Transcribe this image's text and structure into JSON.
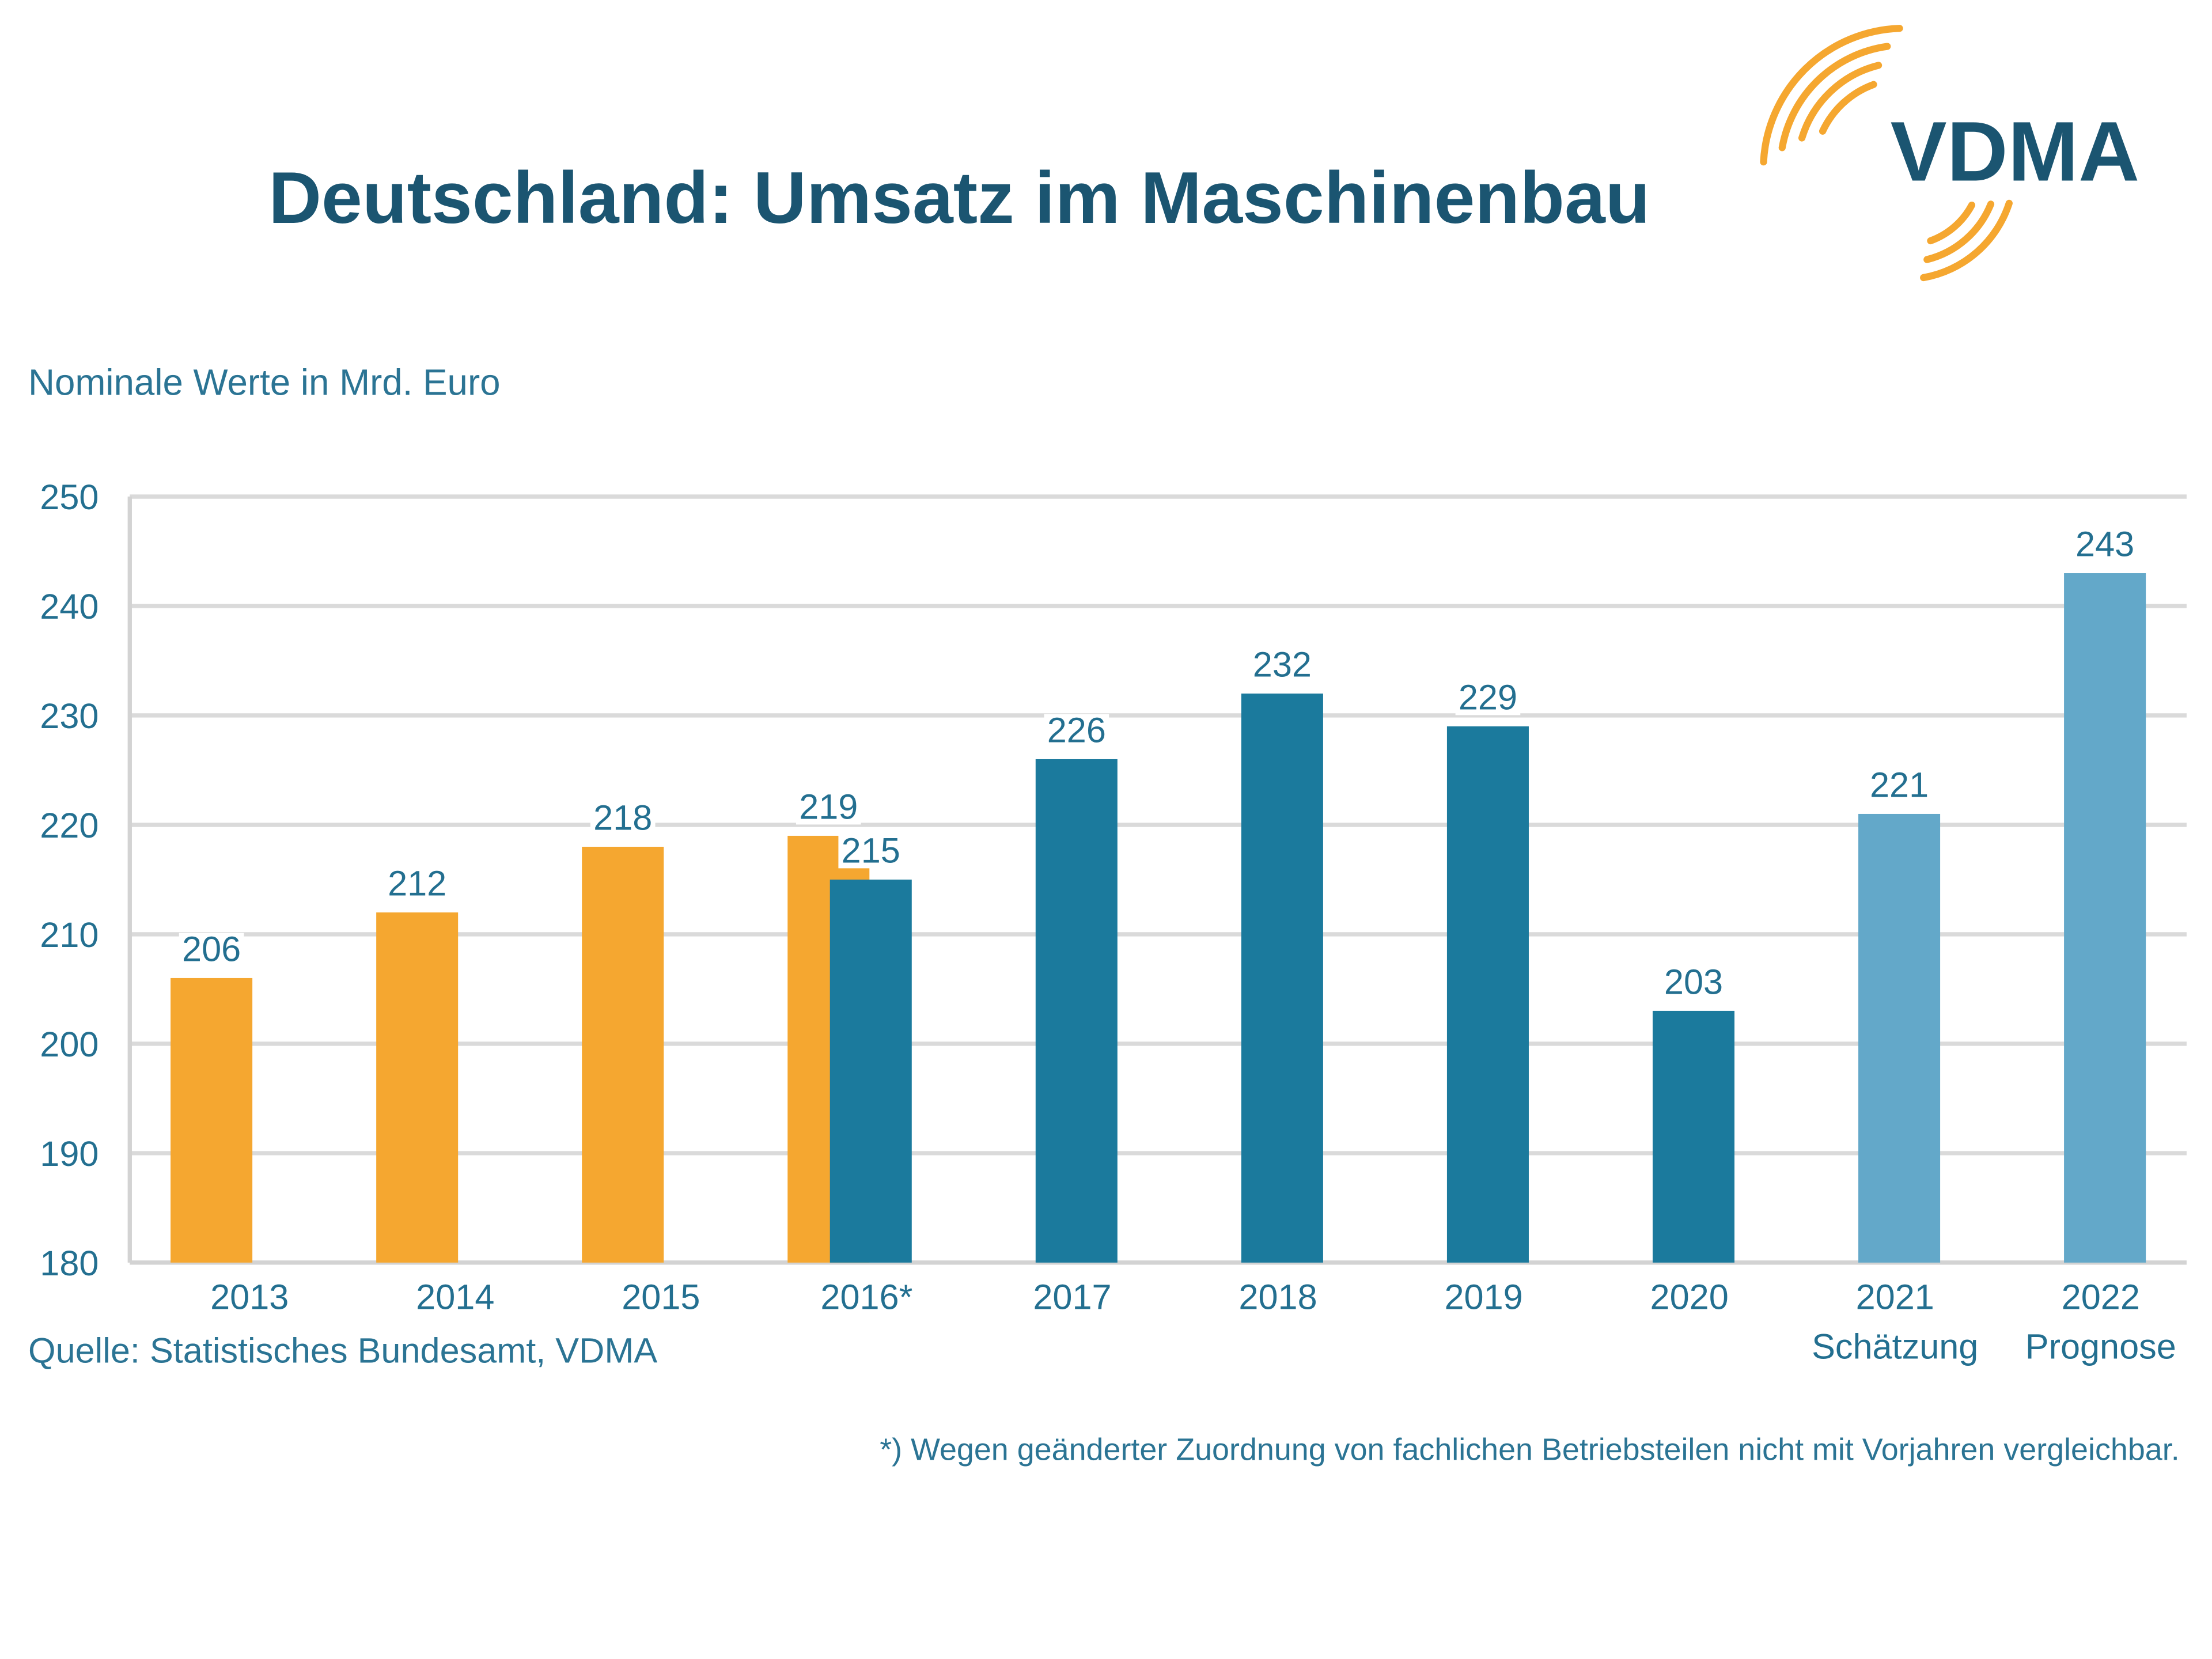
{
  "logo": {
    "text": "VDMA"
  },
  "colors": {
    "title": "#1b5571",
    "text": "#2b7494",
    "label": "#236f90",
    "grid": "#dadada",
    "axis": "#d3d3d3",
    "brand": "#f5a730"
  },
  "chart_data": {
    "type": "bar",
    "title": "Deutschland: Umsatz im Maschinenbau",
    "subtitle": "Nominale Werte in Mrd. Euro",
    "ylim": [
      180,
      250
    ],
    "yticks": [
      180,
      190,
      200,
      210,
      220,
      230,
      240,
      250
    ],
    "grid": true,
    "categories": [
      "2013",
      "2014",
      "2015",
      "2016*",
      "2017",
      "2018",
      "2019",
      "2020",
      "2021",
      "2022"
    ],
    "category_sublabels": [
      null,
      null,
      null,
      null,
      null,
      null,
      null,
      null,
      "Schätzung",
      "Prognose"
    ],
    "series": [
      {
        "color": "#f5a730",
        "values": [
          206,
          212,
          218,
          219,
          null,
          null,
          null,
          null,
          null,
          null
        ]
      },
      {
        "color": "#1b7a9d",
        "values": [
          null,
          null,
          null,
          215,
          226,
          232,
          229,
          203,
          null,
          null
        ]
      },
      {
        "color": "#63a8c9",
        "values": [
          null,
          null,
          null,
          null,
          null,
          null,
          null,
          null,
          221,
          243
        ]
      }
    ],
    "source": "Quelle: Statistisches Bundesamt, VDMA",
    "footnote": "*) Wegen geänderter Zuordnung von fachlichen Betriebsteilen nicht mit Vorjahren vergleichbar."
  }
}
